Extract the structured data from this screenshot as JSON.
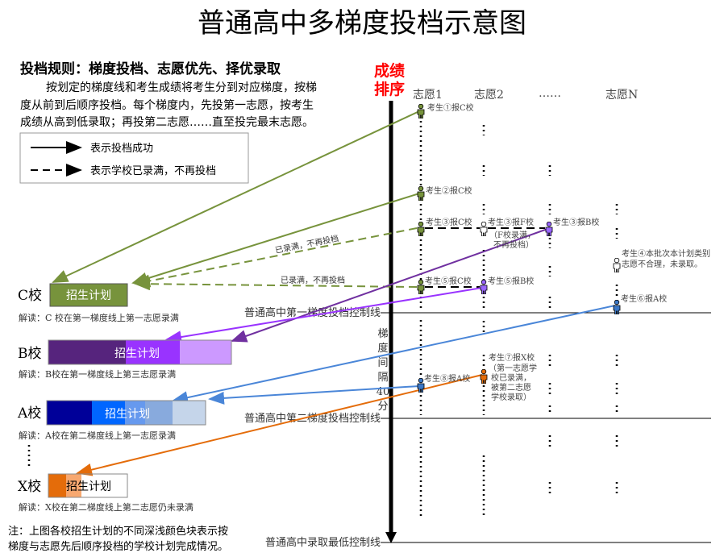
{
  "title": "普通高中多梯度投档示意图",
  "rules": {
    "heading": "投档规则：梯度投档、志愿优先、择优录取",
    "lines": [
      "按划定的梯度线和考生成绩将考生分到对应梯度，按梯",
      "度从前到后顺序投档。每个梯度内，先投第一志愿，按考生",
      "成绩从高到低录取；再投第二志愿……直至投完最末志愿。"
    ]
  },
  "legend": {
    "solid": "表示投档成功",
    "dashed": "表示学校已录满，不再投档"
  },
  "axis": {
    "label_line1": "成绩",
    "label_line2": "排序",
    "color": "#ff0000"
  },
  "columns": [
    "志愿1",
    "志愿2",
    "……",
    "志愿N"
  ],
  "control_lines": [
    "普通高中第一梯度投档控制线",
    "普通高中第二梯度投档控制线",
    "普通高中录取最低控制线"
  ],
  "interval": [
    "梯",
    "度",
    "间",
    "隔",
    "40",
    "分"
  ],
  "schools": [
    {
      "name": "C校",
      "plan": "招生计划",
      "note": "解读：C 校在第一梯度线上第一志愿录满",
      "colors": [
        "#77933c"
      ]
    },
    {
      "name": "B校",
      "plan": "招生计划",
      "note": "解读：B校在第一梯度线上第三志愿录满",
      "colors": [
        "#56247d",
        "#9933ff",
        "#cc99ff"
      ]
    },
    {
      "name": "A校",
      "plan": "招生计划",
      "note": "解读：A校在第二梯度线上第一志愿录满",
      "colors": [
        "#000099",
        "#0066ff",
        "#6699ee",
        "#88aadd",
        "#c5d5ea"
      ]
    },
    {
      "name": "X校",
      "plan": "招生计划",
      "note": "解读：X校在第二梯度线上第二志愿仍未录满",
      "colors": [
        "#e46c0a",
        "#f7a870",
        "#ffffff"
      ]
    }
  ],
  "candidates": [
    {
      "label": "考生①报C校",
      "color": "#77933c"
    },
    {
      "label": "考生②报C校",
      "color": "#77933c"
    },
    {
      "label": "考生③报C校",
      "color": "#77933c"
    },
    {
      "label": "考生③报F校",
      "color": "#ffffff"
    },
    {
      "label": "考生③报B校",
      "color": "#9966ff"
    },
    {
      "label": "考生④本批次本计划类别",
      "label2": "志愿不合理，未录取。",
      "color": "#ffffff"
    },
    {
      "label": "考生⑤报C校",
      "color": "#77933c"
    },
    {
      "label": "考生⑤报B校",
      "color": "#9966ff"
    },
    {
      "label": "考生⑥报A校",
      "color": "#3b78c8"
    },
    {
      "label": "考生⑧报A校",
      "color": "#3b78c8"
    },
    {
      "label": "考生⑦报X校",
      "color": "#e46c0a"
    }
  ],
  "f_note": [
    "（F校录满，",
    "不再投档）"
  ],
  "x7_note": [
    "（第一志愿学",
    "校已录满，",
    "被第二志愿",
    "学校录取）"
  ],
  "full_label": "已录满，不再投档",
  "footnote": [
    "注：上图各校招生计划的不同深浅颜色块表示按",
    "梯度与志愿先后顺序投档的学校计划完成情况。"
  ]
}
